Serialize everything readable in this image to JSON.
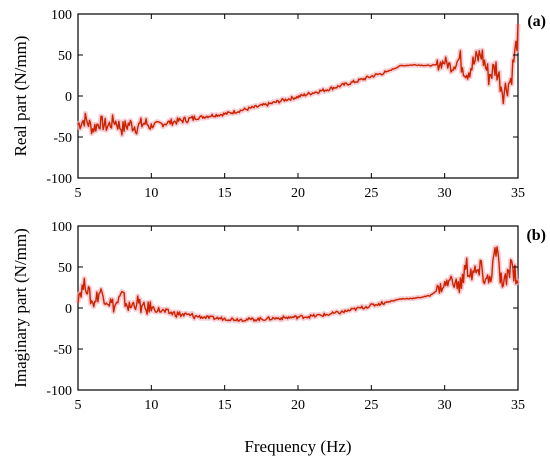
{
  "chart_data": [
    {
      "type": "line",
      "panel_label": "(a)",
      "ylabel": "Real part (N/mm)",
      "xlim": [
        5,
        35
      ],
      "ylim": [
        -100,
        100
      ],
      "xticks": [
        5,
        10,
        15,
        20,
        25,
        30,
        35
      ],
      "yticks": [
        100,
        50,
        0,
        -50,
        -100
      ],
      "line_color": "#cc2200",
      "series": [
        {
          "x": [
            5.0,
            5.5,
            6.0,
            6.5,
            7.0,
            7.5,
            8.0,
            8.5,
            9.0,
            9.5,
            10.0,
            11.0,
            12.0,
            13.0,
            14.0,
            15.0,
            16.0,
            17.0,
            18.0,
            19.0,
            20.0,
            21.0,
            22.0,
            23.0,
            24.0,
            25.0,
            26.0,
            27.0,
            28.0,
            29.0,
            29.5,
            30.0,
            30.5,
            31.0,
            31.5,
            32.0,
            32.5,
            33.0,
            33.5,
            34.0,
            34.5,
            35.0
          ],
          "values": [
            -35,
            -28,
            -40,
            -32,
            -37,
            -30,
            -40,
            -34,
            -38,
            -33,
            -36,
            -33,
            -30,
            -27,
            -24,
            -22,
            -18,
            -14,
            -10,
            -5,
            -1,
            4,
            8,
            13,
            18,
            24,
            29,
            37,
            38,
            37,
            38,
            42,
            35,
            45,
            30,
            40,
            52,
            25,
            35,
            5,
            20,
            75
          ]
        }
      ]
    },
    {
      "type": "line",
      "panel_label": "(b)",
      "ylabel": "Imaginary part (N/mm)",
      "xlabel": "Frequency (Hz)",
      "xlim": [
        5,
        35
      ],
      "ylim": [
        -100,
        100
      ],
      "xticks": [
        5,
        10,
        15,
        20,
        25,
        30,
        35
      ],
      "yticks": [
        100,
        50,
        0,
        -50,
        -100
      ],
      "line_color": "#cc2200",
      "series": [
        {
          "x": [
            5.0,
            5.5,
            6.0,
            6.5,
            7.0,
            7.5,
            8.0,
            8.5,
            9.0,
            9.5,
            10.0,
            11.0,
            12.0,
            13.0,
            14.0,
            15.0,
            16.0,
            17.0,
            18.0,
            19.0,
            20.0,
            21.0,
            22.0,
            23.0,
            24.0,
            25.0,
            26.0,
            27.0,
            28.0,
            29.0,
            29.5,
            30.0,
            30.5,
            31.0,
            31.5,
            32.0,
            32.5,
            33.0,
            33.5,
            34.0,
            34.5,
            35.0
          ],
          "values": [
            15,
            30,
            5,
            20,
            10,
            2,
            15,
            0,
            8,
            -2,
            0,
            -5,
            -8,
            -10,
            -12,
            -13,
            -14,
            -14,
            -13,
            -12,
            -11,
            -10,
            -8,
            -5,
            -1,
            3,
            7,
            11,
            12,
            15,
            22,
            28,
            35,
            25,
            50,
            40,
            45,
            30,
            70,
            20,
            55,
            35
          ]
        }
      ]
    }
  ]
}
